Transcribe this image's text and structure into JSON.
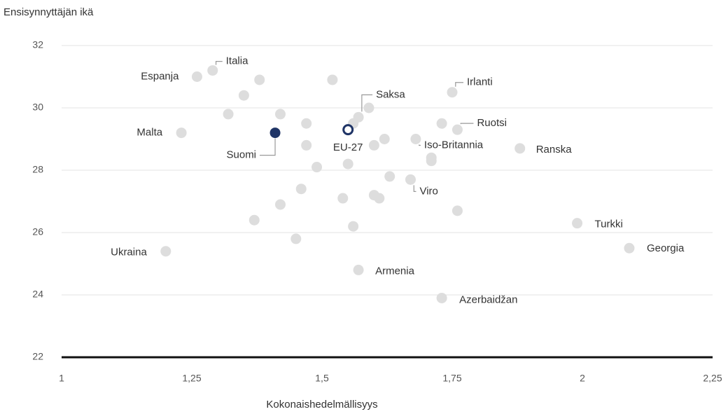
{
  "chart_data": {
    "type": "scatter",
    "y_label": "Ensisynnyttäjän ikä",
    "x_label": "Kokonaishedelmällisyys",
    "xlim": [
      1,
      2.25
    ],
    "xticks": [
      1,
      {
        "value": 1.25,
        "label": "1,25"
      },
      {
        "value": 1.5,
        "label": "1,5"
      },
      {
        "value": 1.75,
        "label": "1,75"
      },
      2,
      {
        "value": 2.25,
        "label": "2,25"
      }
    ],
    "ylim": [
      22,
      32
    ],
    "yticks": [
      22,
      24,
      26,
      28,
      30,
      32
    ],
    "grid": true,
    "series": [
      {
        "color": "#dddddd",
        "hollow": false,
        "x": [
          1.29,
          1.26,
          1.23,
          1.57,
          1.75,
          1.76,
          1.68,
          1.88,
          1.67,
          1.99,
          2.09,
          1.2,
          1.57,
          1.73,
          1.38,
          1.35,
          1.52,
          1.32,
          1.42,
          1.47,
          1.59,
          1.56,
          1.73,
          1.62,
          1.6,
          1.47,
          1.71,
          1.71,
          1.49,
          1.55,
          1.63,
          1.46,
          1.6,
          1.61,
          1.54,
          1.42,
          1.76,
          1.37,
          1.56,
          1.45
        ],
        "y": [
          31.2,
          31.0,
          29.2,
          29.7,
          30.5,
          29.3,
          29.0,
          28.7,
          27.7,
          26.3,
          25.5,
          25.4,
          24.8,
          23.9,
          30.9,
          30.4,
          30.9,
          29.8,
          29.8,
          29.5,
          30.0,
          29.5,
          29.5,
          29.0,
          28.8,
          28.8,
          28.4,
          28.3,
          28.1,
          28.2,
          27.8,
          27.4,
          27.2,
          27.1,
          27.1,
          26.9,
          26.7,
          26.4,
          26.2,
          25.8
        ],
        "labels": [
          "Italia",
          "Espanja",
          "Malta",
          "Saksa",
          "Irlanti",
          "Ruotsi",
          "Iso-Britannia",
          "Ranska",
          "Viro",
          "Turkki",
          "Georgia",
          "Ukraina",
          "Armenia",
          "Azerbaidžan",
          null,
          null,
          null,
          null,
          null,
          null,
          null,
          null,
          null,
          null,
          null,
          null,
          null,
          null,
          null,
          null,
          null,
          null,
          null,
          null,
          null,
          null,
          null,
          null,
          null,
          null
        ]
      },
      {
        "color": "#1f3466",
        "hollow": false,
        "x": [
          1.41
        ],
        "y": [
          29.2
        ],
        "labels": [
          "Suomi"
        ]
      },
      {
        "color": "#1f3466",
        "hollow": true,
        "x": [
          1.55
        ],
        "y": [
          29.3
        ],
        "labels": [
          "EU-27"
        ]
      }
    ]
  }
}
